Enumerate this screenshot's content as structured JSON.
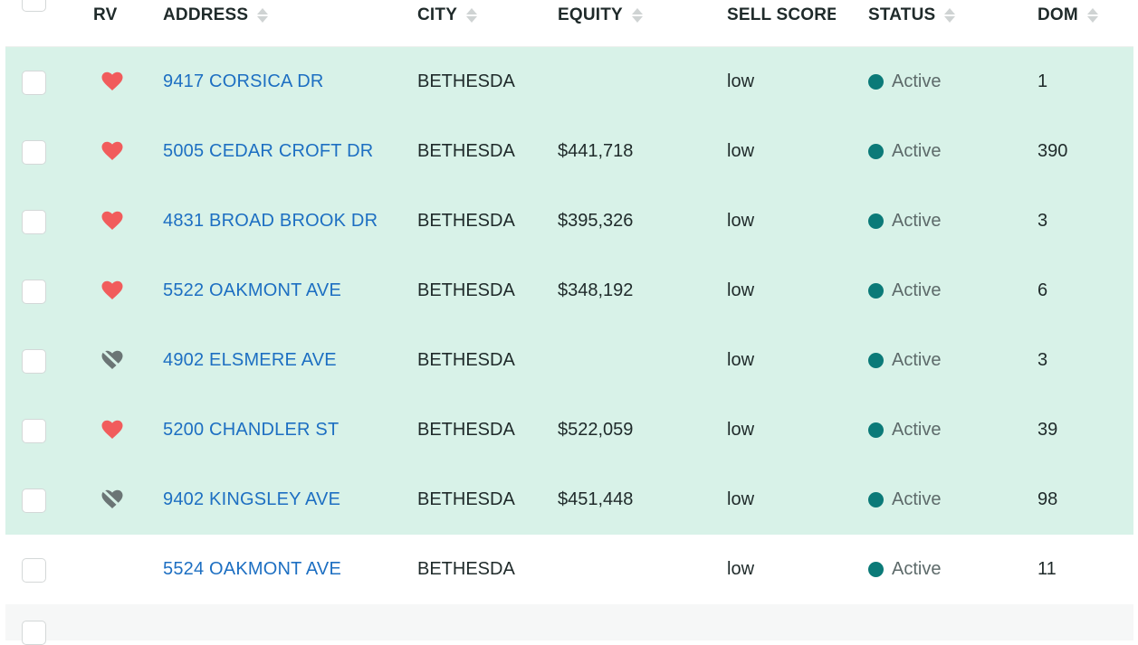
{
  "colors": {
    "selected_row_bg": "#d8f2e8",
    "address_link": "#1d6fc2",
    "status_active": "#0b7a78",
    "heart_liked": "#f15c5c",
    "heart_off": "#6b7575"
  },
  "columns": {
    "rv": "RV",
    "address": "ADDRESS",
    "city": "CITY",
    "equity": "EQUITY",
    "sell_score": "SELL SCORE",
    "status": "STATUS",
    "dom": "DOM"
  },
  "rows": [
    {
      "rv": "liked",
      "address": "9417 CORSICA DR",
      "city": "BETHESDA",
      "equity": "",
      "sell_score": "low",
      "status": "Active",
      "dom": "1"
    },
    {
      "rv": "liked",
      "address": "5005 CEDAR CROFT DR",
      "city": "BETHESDA",
      "equity": "$441,718",
      "sell_score": "low",
      "status": "Active",
      "dom": "390"
    },
    {
      "rv": "liked",
      "address": "4831 BROAD BROOK DR",
      "city": "BETHESDA",
      "equity": "$395,326",
      "sell_score": "low",
      "status": "Active",
      "dom": "3"
    },
    {
      "rv": "liked",
      "address": "5522 OAKMONT AVE",
      "city": "BETHESDA",
      "equity": "$348,192",
      "sell_score": "low",
      "status": "Active",
      "dom": "6"
    },
    {
      "rv": "off",
      "address": "4902 ELSMERE AVE",
      "city": "BETHESDA",
      "equity": "",
      "sell_score": "low",
      "status": "Active",
      "dom": "3"
    },
    {
      "rv": "liked",
      "address": "5200 CHANDLER ST",
      "city": "BETHESDA",
      "equity": "$522,059",
      "sell_score": "low",
      "status": "Active",
      "dom": "39"
    },
    {
      "rv": "off",
      "address": "9402 KINGSLEY AVE",
      "city": "BETHESDA",
      "equity": "$451,448",
      "sell_score": "low",
      "status": "Active",
      "dom": "98"
    },
    {
      "rv": "none",
      "address": "5524 OAKMONT AVE",
      "city": "BETHESDA",
      "equity": "",
      "sell_score": "low",
      "status": "Active",
      "dom": "11"
    }
  ]
}
